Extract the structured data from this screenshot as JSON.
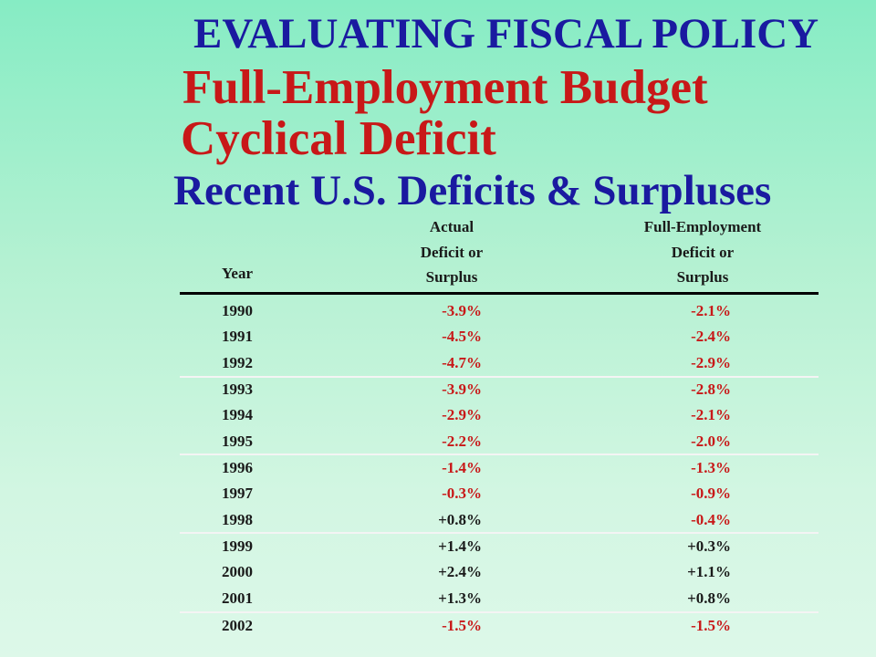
{
  "titles": {
    "main": "EVALUATING FISCAL POLICY",
    "sub1": "Full-Employment Budget",
    "sub2": "Cyclical Deficit",
    "sub3": "Recent U.S. Deficits & Surpluses"
  },
  "table": {
    "headers": {
      "year": "Year",
      "actual": [
        "Actual",
        "Deficit or",
        "Surplus"
      ],
      "full": [
        "Full-Employment",
        "Deficit or",
        "Surplus"
      ]
    },
    "rows": [
      {
        "year": "1990",
        "actual": "-3.9%",
        "full": "-2.1%"
      },
      {
        "year": "1991",
        "actual": "-4.5%",
        "full": "-2.4%"
      },
      {
        "year": "1992",
        "actual": "-4.7%",
        "full": "-2.9%"
      },
      {
        "year": "1993",
        "actual": "-3.9%",
        "full": "-2.8%"
      },
      {
        "year": "1994",
        "actual": "-2.9%",
        "full": "-2.1%"
      },
      {
        "year": "1995",
        "actual": "-2.2%",
        "full": "-2.0%"
      },
      {
        "year": "1996",
        "actual": "-1.4%",
        "full": "-1.3%"
      },
      {
        "year": "1997",
        "actual": "-0.3%",
        "full": "-0.9%"
      },
      {
        "year": "1998",
        "actual": "+0.8%",
        "full": "-0.4%"
      },
      {
        "year": "1999",
        "actual": "+1.4%",
        "full": "+0.3%"
      },
      {
        "year": "2000",
        "actual": "+2.4%",
        "full": "+1.1%"
      },
      {
        "year": "2001",
        "actual": "+1.3%",
        "full": "+0.8%"
      },
      {
        "year": "2002",
        "actual": "-1.5%",
        "full": "-1.5%"
      }
    ]
  },
  "colors": {
    "blue_title": "#1a1aa0",
    "red_title": "#c81818",
    "negative_value": "#c81818",
    "positive_value": "#1a1a1a"
  }
}
